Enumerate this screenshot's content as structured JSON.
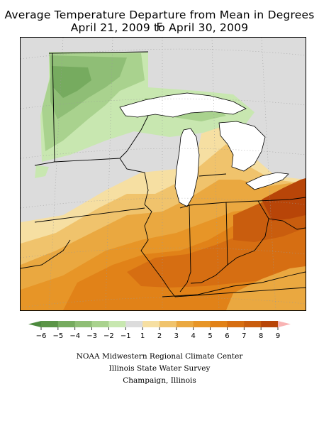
{
  "title": {
    "line1": "Average Temperature Departure from Mean in Degrees F",
    "line2": "April 21, 2009 to April 30, 2009"
  },
  "legend": {
    "bins": [
      {
        "color": "#5b9447"
      },
      {
        "color": "#76ab5f"
      },
      {
        "color": "#8fbe76"
      },
      {
        "color": "#a9d28e"
      },
      {
        "color": "#c8e7b0"
      },
      {
        "color": "#dcdcdc"
      },
      {
        "color": "#f6dfa2"
      },
      {
        "color": "#f0c36c"
      },
      {
        "color": "#eaa840"
      },
      {
        "color": "#e79527"
      },
      {
        "color": "#e18218"
      },
      {
        "color": "#d66e12"
      },
      {
        "color": "#c95d0e"
      },
      {
        "color": "#b84508"
      }
    ],
    "left_tip_color": "#4d8a3e",
    "right_tip_color": "#f9b4b4",
    "ticks": [
      "−6",
      "−5",
      "−4",
      "−3",
      "−2",
      "−1",
      "1",
      "2",
      "3",
      "4",
      "5",
      "6",
      "7",
      "8",
      "9"
    ]
  },
  "credits": {
    "line1": "NOAA Midwestern Regional Climate Center",
    "line2": "Illinois State Water Survey",
    "line3": "Champaign, Illinois"
  }
}
